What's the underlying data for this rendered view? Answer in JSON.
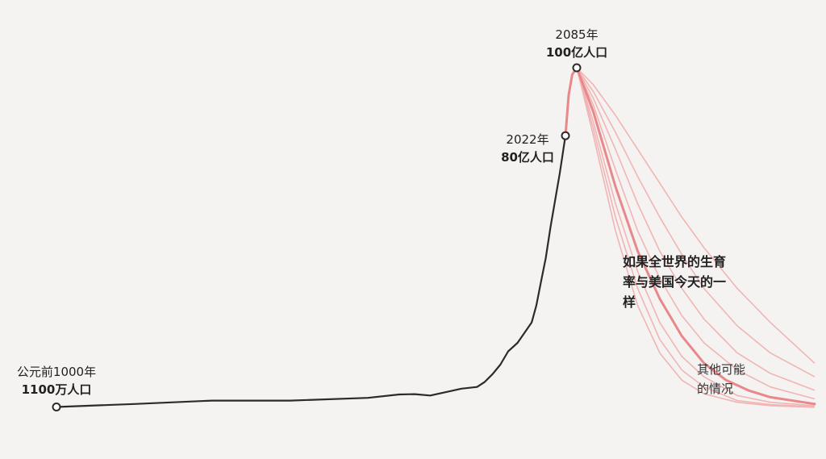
{
  "chart_data": {
    "type": "line",
    "title": "",
    "xlabel": "",
    "ylabel": "",
    "xlim": [
      -1000,
      2300
    ],
    "ylim": [
      0,
      10
    ],
    "grid": false,
    "colors": {
      "history": "#2b2b2b",
      "projection": "#e8888a",
      "alternatives": "#f0b5b4",
      "marker_fill": "#ffffff"
    },
    "series": [
      {
        "id": "history",
        "x": [
          -1000,
          -500,
          0,
          500,
          1000,
          1200,
          1300,
          1400,
          1500,
          1600,
          1700,
          1750,
          1800,
          1850,
          1900,
          1920,
          1950,
          1960,
          1970,
          1980,
          1990,
          2000,
          2010,
          2022
        ],
        "values": [
          0.011,
          0.1,
          0.2,
          0.2,
          0.28,
          0.38,
          0.39,
          0.35,
          0.45,
          0.55,
          0.6,
          0.75,
          0.98,
          1.26,
          1.65,
          1.9,
          2.5,
          3.0,
          3.7,
          4.4,
          5.3,
          6.1,
          6.9,
          8.0
        ]
      },
      {
        "id": "projection",
        "x": [
          2022,
          2040,
          2060,
          2085
        ],
        "values": [
          8.0,
          9.2,
          9.8,
          10.0
        ]
      },
      {
        "id": "us-fertility-scenario",
        "x": [
          2085,
          2100,
          2120,
          2140,
          2160,
          2180,
          2200,
          2220,
          2240,
          2260,
          2300
        ],
        "values": [
          10.0,
          8.7,
          6.5,
          4.6,
          3.2,
          2.1,
          1.3,
          0.8,
          0.5,
          0.3,
          0.1
        ]
      }
    ],
    "alternatives": [
      {
        "x": [
          2085,
          2100,
          2120,
          2140,
          2160,
          2180,
          2200,
          2230,
          2260,
          2300
        ],
        "values": [
          10.0,
          8.0,
          5.2,
          3.0,
          1.6,
          0.8,
          0.4,
          0.15,
          0.05,
          0.0
        ]
      },
      {
        "x": [
          2085,
          2100,
          2120,
          2140,
          2160,
          2180,
          2200,
          2230,
          2260,
          2300
        ],
        "values": [
          10.0,
          8.2,
          5.6,
          3.5,
          2.0,
          1.1,
          0.6,
          0.2,
          0.08,
          0.02
        ]
      },
      {
        "x": [
          2085,
          2100,
          2120,
          2140,
          2160,
          2180,
          2200,
          2230,
          2260,
          2300
        ],
        "values": [
          10.0,
          8.4,
          6.0,
          4.0,
          2.5,
          1.5,
          0.9,
          0.35,
          0.15,
          0.05
        ]
      },
      {
        "x": [
          2085,
          2100,
          2120,
          2140,
          2160,
          2180,
          2200,
          2230,
          2260,
          2300
        ],
        "values": [
          10.0,
          8.9,
          7.0,
          5.2,
          3.8,
          2.7,
          1.9,
          1.1,
          0.6,
          0.25
        ]
      },
      {
        "x": [
          2085,
          2100,
          2120,
          2140,
          2160,
          2180,
          2200,
          2230,
          2260,
          2300
        ],
        "values": [
          10.0,
          9.1,
          7.6,
          6.0,
          4.6,
          3.5,
          2.6,
          1.6,
          1.0,
          0.5
        ]
      },
      {
        "x": [
          2085,
          2100,
          2120,
          2140,
          2160,
          2180,
          2200,
          2230,
          2260,
          2300
        ],
        "values": [
          10.0,
          9.3,
          8.1,
          6.8,
          5.6,
          4.5,
          3.5,
          2.4,
          1.6,
          0.9
        ]
      },
      {
        "x": [
          2085,
          2100,
          2120,
          2140,
          2160,
          2180,
          2200,
          2230,
          2260,
          2300
        ],
        "values": [
          10.0,
          9.5,
          8.6,
          7.6,
          6.6,
          5.6,
          4.7,
          3.5,
          2.5,
          1.3
        ]
      }
    ],
    "points": [
      {
        "id": "start",
        "x": -1000,
        "y": 0.011,
        "year_label": "公元前1000年",
        "pop_label": "1100万人口"
      },
      {
        "id": "now",
        "x": 2022,
        "y": 8.0,
        "year_label": "2022年",
        "pop_label": "80亿人口"
      },
      {
        "id": "peak",
        "x": 2085,
        "y": 10.0,
        "year_label": "2085年",
        "pop_label": "100亿人口"
      }
    ],
    "annotations": {
      "main_lines": [
        "如果全世界的生育",
        "率与美国今天的一",
        "样"
      ],
      "other_lines": [
        "其他可能",
        "的情况"
      ]
    }
  }
}
